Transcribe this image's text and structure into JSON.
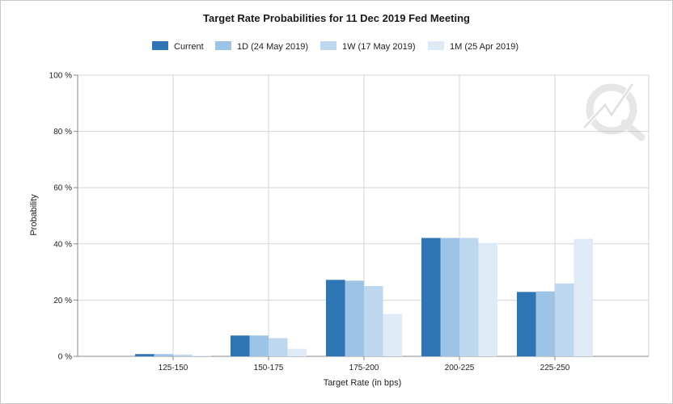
{
  "chart_data": {
    "type": "bar",
    "title": "Target Rate Probabilities for 11 Dec 2019 Fed Meeting",
    "xlabel": "Target Rate (in bps)",
    "ylabel": "Probability",
    "categories": [
      "125-150",
      "150-175",
      "175-200",
      "200-225",
      "225-250"
    ],
    "ylim": [
      0,
      100
    ],
    "yticks": [
      0,
      20,
      40,
      60,
      80,
      100
    ],
    "ytick_labels": [
      "0 %",
      "20 %",
      "40 %",
      "60 %",
      "80 %",
      "100 %"
    ],
    "grid": true,
    "legend_position": "top",
    "series": [
      {
        "name": "Current",
        "color": "#2e75b6",
        "values": [
          0.8,
          7.4,
          27.2,
          42.1,
          22.9
        ]
      },
      {
        "name": "1D (24 May 2019)",
        "color": "#9dc3e6",
        "values": [
          0.8,
          7.4,
          26.9,
          42.1,
          23.1
        ]
      },
      {
        "name": "1W (17 May 2019)",
        "color": "#bdd7ee",
        "values": [
          0.6,
          6.5,
          25.0,
          42.1,
          25.9
        ]
      },
      {
        "name": "1M (25 Apr 2019)",
        "color": "#deebf7",
        "values": [
          0.3,
          2.7,
          15.1,
          40.3,
          41.8
        ]
      }
    ]
  }
}
